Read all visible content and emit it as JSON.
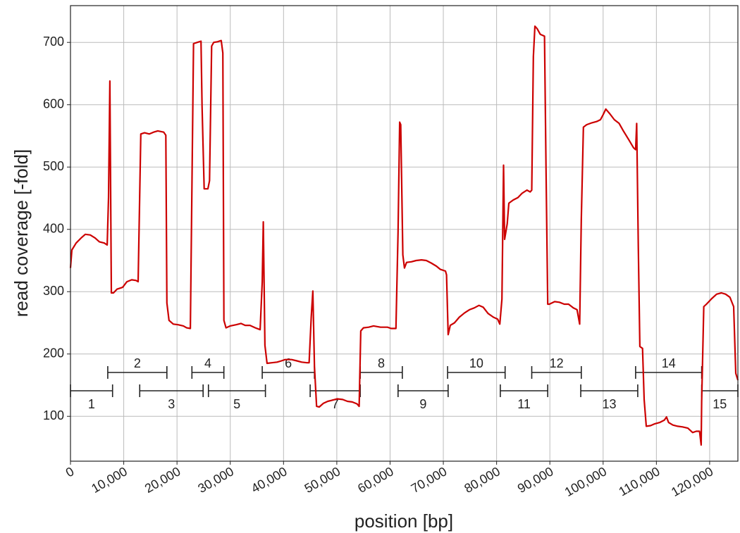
{
  "chart_data": {
    "type": "line",
    "xlabel": "position [bp]",
    "ylabel": "read coverage [-fold]",
    "xlim": [
      0,
      125300
    ],
    "ylim": [
      28,
      759
    ],
    "xticks": [
      0,
      {
        "value": 10000,
        "label": "10,000"
      },
      {
        "value": 20000,
        "label": "20,000"
      },
      {
        "value": 30000,
        "label": "30,000"
      },
      {
        "value": 40000,
        "label": "40,000"
      },
      {
        "value": 50000,
        "label": "50,000"
      },
      {
        "value": 60000,
        "label": "60,000"
      },
      {
        "value": 70000,
        "label": "70,000"
      },
      {
        "value": 80000,
        "label": "80,000"
      },
      {
        "value": 90000,
        "label": "90,000"
      },
      {
        "value": 100000,
        "label": "100,000"
      },
      {
        "value": 110000,
        "label": "110,000"
      },
      {
        "value": 120000,
        "label": "120,000"
      }
    ],
    "yticks": [
      100,
      200,
      300,
      400,
      500,
      600,
      700
    ],
    "grid": true,
    "series": [
      {
        "color": "#cc0000",
        "x": [
          0,
          264,
          1058,
          1984,
          2778,
          3700,
          4630,
          5420,
          6350,
          6900,
          7140,
          7400,
          7670,
          8070,
          8730,
          9790,
          10600,
          11500,
          12300,
          12700,
          13200,
          13900,
          14800,
          15600,
          16400,
          17500,
          17900,
          18100,
          18500,
          19300,
          20200,
          21200,
          21800,
          22500,
          23100,
          23800,
          24500,
          24700,
          25100,
          25800,
          26100,
          26500,
          26900,
          27600,
          28300,
          28600,
          28800,
          29200,
          30000,
          31100,
          32000,
          32800,
          33700,
          34700,
          35600,
          36000,
          36200,
          36500,
          36900,
          37800,
          38800,
          39600,
          40300,
          41500,
          42500,
          43400,
          44400,
          44800,
          45200,
          45500,
          45800,
          46200,
          46700,
          47500,
          48300,
          49200,
          50100,
          51100,
          52000,
          52900,
          53800,
          54200,
          54500,
          55000,
          56000,
          56900,
          58200,
          59500,
          60200,
          61100,
          61500,
          61800,
          62000,
          62400,
          62700,
          63100,
          64000,
          64900,
          65900,
          66800,
          67700,
          68700,
          69400,
          70400,
          70600,
          70900,
          71300,
          72100,
          73000,
          74000,
          74900,
          75800,
          76700,
          77500,
          78400,
          79400,
          80200,
          80600,
          81000,
          81300,
          81500,
          82000,
          82300,
          83100,
          84000,
          84800,
          85700,
          86300,
          86600,
          86900,
          87200,
          87600,
          88200,
          89000,
          89300,
          89600,
          89900,
          90900,
          91800,
          92700,
          93500,
          94400,
          95100,
          95600,
          95900,
          96300,
          96900,
          97900,
          98800,
          99500,
          100000,
          100500,
          101300,
          102100,
          103000,
          103800,
          104800,
          105700,
          106100,
          106300,
          106600,
          106900,
          107400,
          107700,
          108100,
          108900,
          109700,
          110600,
          111500,
          111900,
          112300,
          113100,
          114000,
          114900,
          115900,
          116800,
          117500,
          118100,
          118400,
          118500,
          118900,
          119400,
          120400,
          121300,
          122200,
          123000,
          123800,
          124500,
          124900,
          125300
        ],
        "values": [
          338,
          367,
          378,
          386,
          392,
          391,
          386,
          380,
          378,
          375,
          451,
          638,
          298,
          298,
          304,
          307,
          316,
          319,
          318,
          316,
          553,
          555,
          553,
          556,
          558,
          556,
          551,
          282,
          254,
          248,
          247,
          245,
          242,
          241,
          698,
          700,
          702,
          598,
          465,
          465,
          478,
          694,
          700,
          701,
          703,
          683,
          254,
          242,
          245,
          247,
          249,
          246,
          246,
          242,
          239,
          316,
          412,
          214,
          185,
          186,
          187,
          189,
          191,
          191,
          189,
          187,
          186,
          186,
          259,
          301,
          180,
          116,
          115,
          121,
          124,
          126,
          128,
          127,
          124,
          123,
          120,
          116,
          237,
          242,
          243,
          245,
          243,
          243,
          241,
          241,
          395,
          572,
          568,
          359,
          338,
          347,
          348,
          350,
          351,
          350,
          346,
          341,
          336,
          333,
          327,
          231,
          246,
          250,
          259,
          266,
          271,
          274,
          278,
          275,
          265,
          259,
          256,
          248,
          288,
          503,
          384,
          409,
          442,
          447,
          451,
          458,
          463,
          460,
          463,
          677,
          726,
          722,
          713,
          710,
          485,
          280,
          280,
          284,
          283,
          280,
          280,
          274,
          271,
          248,
          415,
          564,
          568,
          571,
          573,
          576,
          584,
          593,
          585,
          576,
          570,
          558,
          544,
          531,
          528,
          570,
          372,
          212,
          209,
          127,
          84,
          85,
          88,
          90,
          94,
          99,
          90,
          86,
          84,
          83,
          81,
          74,
          76,
          76,
          54,
          124,
          276,
          280,
          289,
          296,
          298,
          296,
          291,
          276,
          169,
          158
        ]
      }
    ],
    "amplicons": [
      {
        "label": "1",
        "start": 0,
        "end": 7900
      },
      {
        "label": "2",
        "start": 7000,
        "end": 18100
      },
      {
        "label": "3",
        "start": 13000,
        "end": 24900
      },
      {
        "label": "4",
        "start": 22800,
        "end": 28800
      },
      {
        "label": "5",
        "start": 25900,
        "end": 36600
      },
      {
        "label": "6",
        "start": 36000,
        "end": 45800
      },
      {
        "label": "7",
        "start": 45000,
        "end": 54400
      },
      {
        "label": "8",
        "start": 54400,
        "end": 62300
      },
      {
        "label": "9",
        "start": 61500,
        "end": 70900
      },
      {
        "label": "10",
        "start": 70800,
        "end": 81600
      },
      {
        "label": "11",
        "start": 80700,
        "end": 89600
      },
      {
        "label": "12",
        "start": 86600,
        "end": 95900
      },
      {
        "label": "13",
        "start": 95800,
        "end": 106500
      },
      {
        "label": "14",
        "start": 106100,
        "end": 118500
      },
      {
        "label": "15",
        "start": 118500,
        "end": 125300
      }
    ]
  }
}
